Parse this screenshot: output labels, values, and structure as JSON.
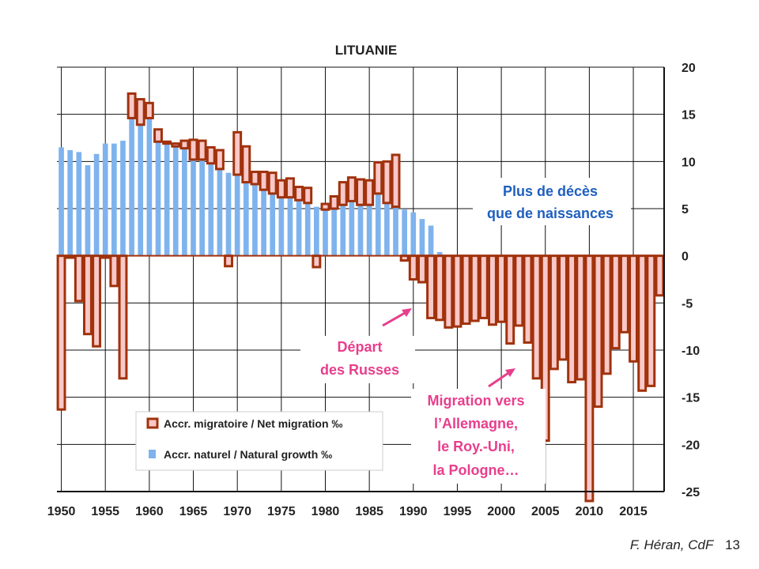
{
  "chart_data": {
    "type": "bar",
    "title": "LITUANIE",
    "ylim": [
      -25,
      20
    ],
    "yticks": [
      20,
      15,
      10,
      5,
      0,
      -5,
      -10,
      -15,
      -20,
      -25
    ],
    "xticks": [
      1950,
      1955,
      1960,
      1965,
      1970,
      1975,
      1980,
      1985,
      1990,
      1995,
      2000,
      2005,
      2010,
      2015
    ],
    "years": [
      1950,
      1951,
      1952,
      1953,
      1954,
      1955,
      1956,
      1957,
      1958,
      1959,
      1960,
      1961,
      1962,
      1963,
      1964,
      1965,
      1966,
      1967,
      1968,
      1969,
      1970,
      1971,
      1972,
      1973,
      1974,
      1975,
      1976,
      1977,
      1978,
      1979,
      1980,
      1981,
      1982,
      1983,
      1984,
      1985,
      1986,
      1987,
      1988,
      1989,
      1990,
      1991,
      1992,
      1993,
      1994,
      1995,
      1996,
      1997,
      1998,
      1999,
      2000,
      2001,
      2002,
      2003,
      2004,
      2005,
      2006,
      2007,
      2008,
      2009,
      2010,
      2011,
      2012,
      2013,
      2014,
      2015,
      2016,
      2017,
      2018
    ],
    "grid": true,
    "legend_position": "bottom-left",
    "series": [
      {
        "name": "Accr. naturel / Natural growth ‰",
        "color": "#7fb3ee",
        "values": [
          11.5,
          11.2,
          11.0,
          9.6,
          10.8,
          11.9,
          11.9,
          12.2,
          14.6,
          13.9,
          14.6,
          12.1,
          11.9,
          11.6,
          11.4,
          10.2,
          10.2,
          9.8,
          9.2,
          8.8,
          8.6,
          7.8,
          7.6,
          7.0,
          6.6,
          6.2,
          6.2,
          5.9,
          5.6,
          5.2,
          4.9,
          5.0,
          5.4,
          5.8,
          5.4,
          5.4,
          6.6,
          5.6,
          5.2,
          4.9,
          4.6,
          3.9,
          3.2,
          0.4,
          -0.4,
          -0.6,
          -0.6,
          -0.6,
          -0.6,
          -0.8,
          -0.6,
          -1.3,
          -1.9,
          -2.0,
          -2.6,
          -3.5,
          -3.7,
          -4.0,
          -3.5,
          -2.1,
          -2.5,
          -2.7,
          -3.5,
          -3.4,
          -3.0,
          -3.1,
          -3.3,
          -3.5,
          -3.8
        ]
      },
      {
        "name": "Accr. migratoire / Net migration ‰",
        "color": "#f9c8c8",
        "border": "#a0320c",
        "values": [
          -16.3,
          -0.2,
          -4.8,
          -8.3,
          -9.6,
          -0.2,
          -3.2,
          -13.0,
          2.6,
          2.7,
          1.6,
          1.3,
          0.2,
          0.3,
          0.8,
          2.1,
          2.0,
          1.7,
          2.0,
          -1.1,
          4.5,
          3.8,
          1.3,
          1.9,
          2.2,
          1.8,
          2.0,
          1.4,
          1.6,
          -1.2,
          0.6,
          1.3,
          2.4,
          2.5,
          2.7,
          2.6,
          3.3,
          4.4,
          5.5,
          -0.5,
          -2.5,
          -2.8,
          -6.6,
          -6.8,
          -7.6,
          -7.5,
          -7.2,
          -6.9,
          -6.6,
          -7.3,
          -7.0,
          -9.3,
          -7.4,
          -9.2,
          -13.0,
          -19.6,
          -12.0,
          -11.0,
          -13.4,
          -13.1,
          -26.0,
          -16.0,
          -12.5,
          -9.8,
          -8.1,
          -11.2,
          -14.3,
          -13.8,
          -4.2
        ]
      }
    ]
  },
  "annotations": {
    "deaths_line1": "Plus de décès",
    "deaths_line2": "que de naissances",
    "russians_line1": "Départ",
    "russians_line2": "des Russes",
    "migration_line1": "Migration vers",
    "migration_line2": "l’Allemagne,",
    "migration_line3": "le Roy.-Uni,",
    "migration_line4": "la Pologne…"
  },
  "footer": {
    "author": "F. Héran, CdF",
    "page_number": "13"
  }
}
